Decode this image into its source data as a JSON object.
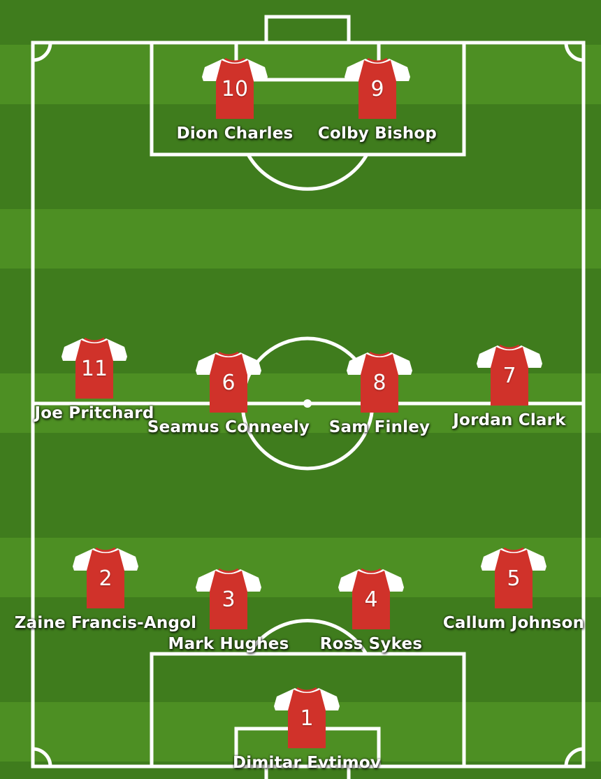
{
  "colors": {
    "shirt_body": "#d0322a",
    "shirt_sleeves": "#ffffff",
    "grass_dark": "#3f7c1d",
    "grass_light": "#4d8f23",
    "lines": "#ffffff"
  },
  "players": [
    {
      "number": "10",
      "name": "Dion Charles"
    },
    {
      "number": "9",
      "name": "Colby Bishop"
    },
    {
      "number": "11",
      "name": "Joe Pritchard"
    },
    {
      "number": "6",
      "name": "Seamus Conneely"
    },
    {
      "number": "8",
      "name": "Sam Finley"
    },
    {
      "number": "7",
      "name": "Jordan Clark"
    },
    {
      "number": "2",
      "name": "Zaine Francis-Angol"
    },
    {
      "number": "3",
      "name": "Mark Hughes"
    },
    {
      "number": "4",
      "name": "Ross Sykes"
    },
    {
      "number": "5",
      "name": "Callum Johnson"
    },
    {
      "number": "1",
      "name": "Dimitar Evtimov"
    }
  ]
}
